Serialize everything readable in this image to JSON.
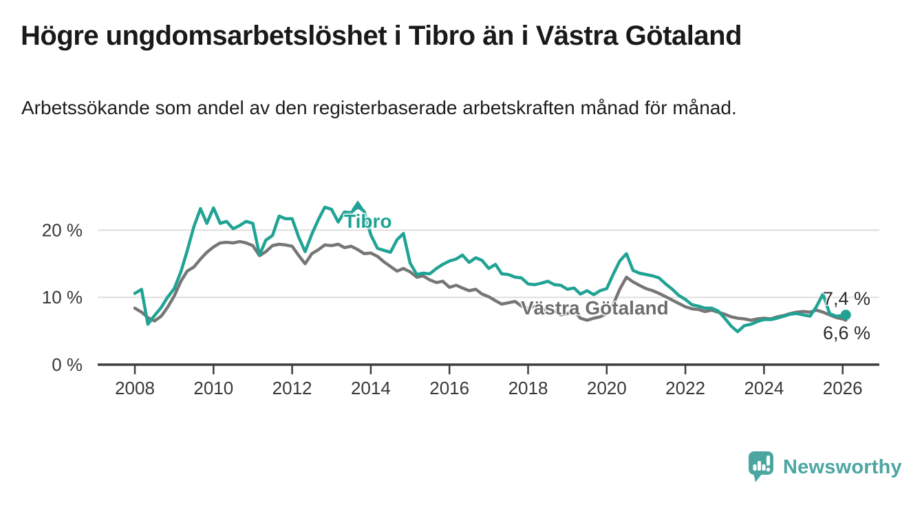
{
  "header": {
    "title": "Högre ungdomsarbetslöshet i Tibro än i Västra Götaland",
    "subtitle": "Arbetssökande som andel av den registerbaserade arbetskraften månad för månad."
  },
  "chart_data": {
    "type": "line",
    "title": "Högre ungdomsarbetslöshet i Tibro än i Västra Götaland",
    "unit": "%",
    "grid": "horizontal-only",
    "legend_position": "inline-labels-on-lines",
    "x_axis": {
      "ticks": [
        2008,
        2010,
        2012,
        2014,
        2016,
        2018,
        2020,
        2022,
        2024,
        2026
      ],
      "range": [
        2007.1,
        2026.9
      ]
    },
    "y_axis": {
      "ticks": [
        0,
        10,
        20
      ],
      "tick_labels": [
        "0 %",
        "10 %",
        "20 %"
      ],
      "range": [
        0,
        25.6
      ]
    },
    "x": [
      2008,
      2008.17,
      2008.33,
      2008.5,
      2008.67,
      2008.83,
      2009,
      2009.17,
      2009.33,
      2009.5,
      2009.67,
      2009.83,
      2010,
      2010.17,
      2010.33,
      2010.5,
      2010.67,
      2010.83,
      2011,
      2011.17,
      2011.33,
      2011.5,
      2011.67,
      2011.83,
      2012,
      2012.17,
      2012.33,
      2012.5,
      2012.67,
      2012.83,
      2013,
      2013.17,
      2013.33,
      2013.5,
      2013.67,
      2013.83,
      2014,
      2014.17,
      2014.33,
      2014.5,
      2014.67,
      2014.83,
      2015,
      2015.17,
      2015.33,
      2015.5,
      2015.67,
      2015.83,
      2016,
      2016.17,
      2016.33,
      2016.5,
      2016.67,
      2016.83,
      2017,
      2017.17,
      2017.33,
      2017.5,
      2017.67,
      2017.83,
      2018,
      2018.17,
      2018.33,
      2018.5,
      2018.67,
      2018.83,
      2019,
      2019.17,
      2019.33,
      2019.5,
      2019.67,
      2019.83,
      2020,
      2020.17,
      2020.33,
      2020.5,
      2020.67,
      2020.83,
      2021,
      2021.17,
      2021.33,
      2021.5,
      2021.67,
      2021.83,
      2022,
      2022.17,
      2022.33,
      2022.5,
      2022.67,
      2022.83,
      2023,
      2023.17,
      2023.33,
      2023.5,
      2023.67,
      2023.83,
      2024,
      2024.17,
      2024.33,
      2024.5,
      2024.67,
      2024.83,
      2025,
      2025.17,
      2025.33,
      2025.5,
      2025.67,
      2025.83,
      2026,
      2026.08
    ],
    "series": [
      {
        "name": "Tibro",
        "color": "#20a394",
        "end_label": "7,4 %",
        "end_value": 7.4,
        "end_dot": true,
        "max_marker": {
          "x": 2013.67,
          "value": 23.5
        },
        "values": [
          10.6,
          11.2,
          6.0,
          7.3,
          8.5,
          10.0,
          11.3,
          13.8,
          16.9,
          20.5,
          23.2,
          21.0,
          23.3,
          21.0,
          21.3,
          20.2,
          20.7,
          21.3,
          21.0,
          16.3,
          18.5,
          19.2,
          22.1,
          21.7,
          21.7,
          18.9,
          16.8,
          19.4,
          21.6,
          23.4,
          23.1,
          21.2,
          22.7,
          22.6,
          23.5,
          22.8,
          19.3,
          17.3,
          17.0,
          16.7,
          18.6,
          19.5,
          15.1,
          13.4,
          13.6,
          13.5,
          14.3,
          14.9,
          15.4,
          15.7,
          16.3,
          15.2,
          15.9,
          15.5,
          14.3,
          14.9,
          13.5,
          13.4,
          13.0,
          12.9,
          12.0,
          11.9,
          12.1,
          12.4,
          11.9,
          11.8,
          11.2,
          11.4,
          10.5,
          11.0,
          10.4,
          11.0,
          11.3,
          13.5,
          15.4,
          16.5,
          14.0,
          13.6,
          13.4,
          13.2,
          12.9,
          12.0,
          11.2,
          10.3,
          9.7,
          8.9,
          8.7,
          8.4,
          8.4,
          8.0,
          6.9,
          5.7,
          4.9,
          5.8,
          6.0,
          6.4,
          6.7,
          6.7,
          6.9,
          7.2,
          7.5,
          7.6,
          7.4,
          7.2,
          8.6,
          10.5,
          7.6,
          7.2,
          7.3,
          7.4
        ]
      },
      {
        "name": "Västra Götaland",
        "color": "#767676",
        "end_label": "6,6 %",
        "end_value": 6.6,
        "end_dot": false,
        "values": [
          8.4,
          7.8,
          7.0,
          6.5,
          7.2,
          8.5,
          10.2,
          12.4,
          13.9,
          14.5,
          15.7,
          16.7,
          17.5,
          18.1,
          18.2,
          18.1,
          18.3,
          18.1,
          17.7,
          16.2,
          16.8,
          17.7,
          17.9,
          17.8,
          17.6,
          16.2,
          15.0,
          16.5,
          17.1,
          17.8,
          17.7,
          17.9,
          17.4,
          17.6,
          17.1,
          16.5,
          16.6,
          16.1,
          15.3,
          14.6,
          13.9,
          14.3,
          13.8,
          13.0,
          13.2,
          12.6,
          12.2,
          12.4,
          11.5,
          11.8,
          11.4,
          11.0,
          11.2,
          10.5,
          10.1,
          9.5,
          9.0,
          9.2,
          9.4,
          8.7,
          8.4,
          8.7,
          8.1,
          8.2,
          8.0,
          7.4,
          7.6,
          8.0,
          6.9,
          6.6,
          6.9,
          7.1,
          7.6,
          9.0,
          11.2,
          13.0,
          12.3,
          11.8,
          11.3,
          11.0,
          10.6,
          10.1,
          9.6,
          9.1,
          8.6,
          8.3,
          8.2,
          7.9,
          8.1,
          7.8,
          7.5,
          7.1,
          6.9,
          6.8,
          6.6,
          6.8,
          6.9,
          6.8,
          7.1,
          7.3,
          7.6,
          7.8,
          7.9,
          7.8,
          8.1,
          7.8,
          7.4,
          7.0,
          6.8,
          6.6
        ]
      }
    ],
    "colors": {
      "accent_teal": "#20a394",
      "line_gray": "#767676",
      "axis": "#3c3c3c",
      "grid": "#dedede",
      "tick_text": "#383838"
    }
  },
  "footer": {
    "brand": "Newsworthy",
    "logo_color": "#4ba6a1",
    "logo_icon": "speech-bubble-bar-chart-exclamation"
  }
}
